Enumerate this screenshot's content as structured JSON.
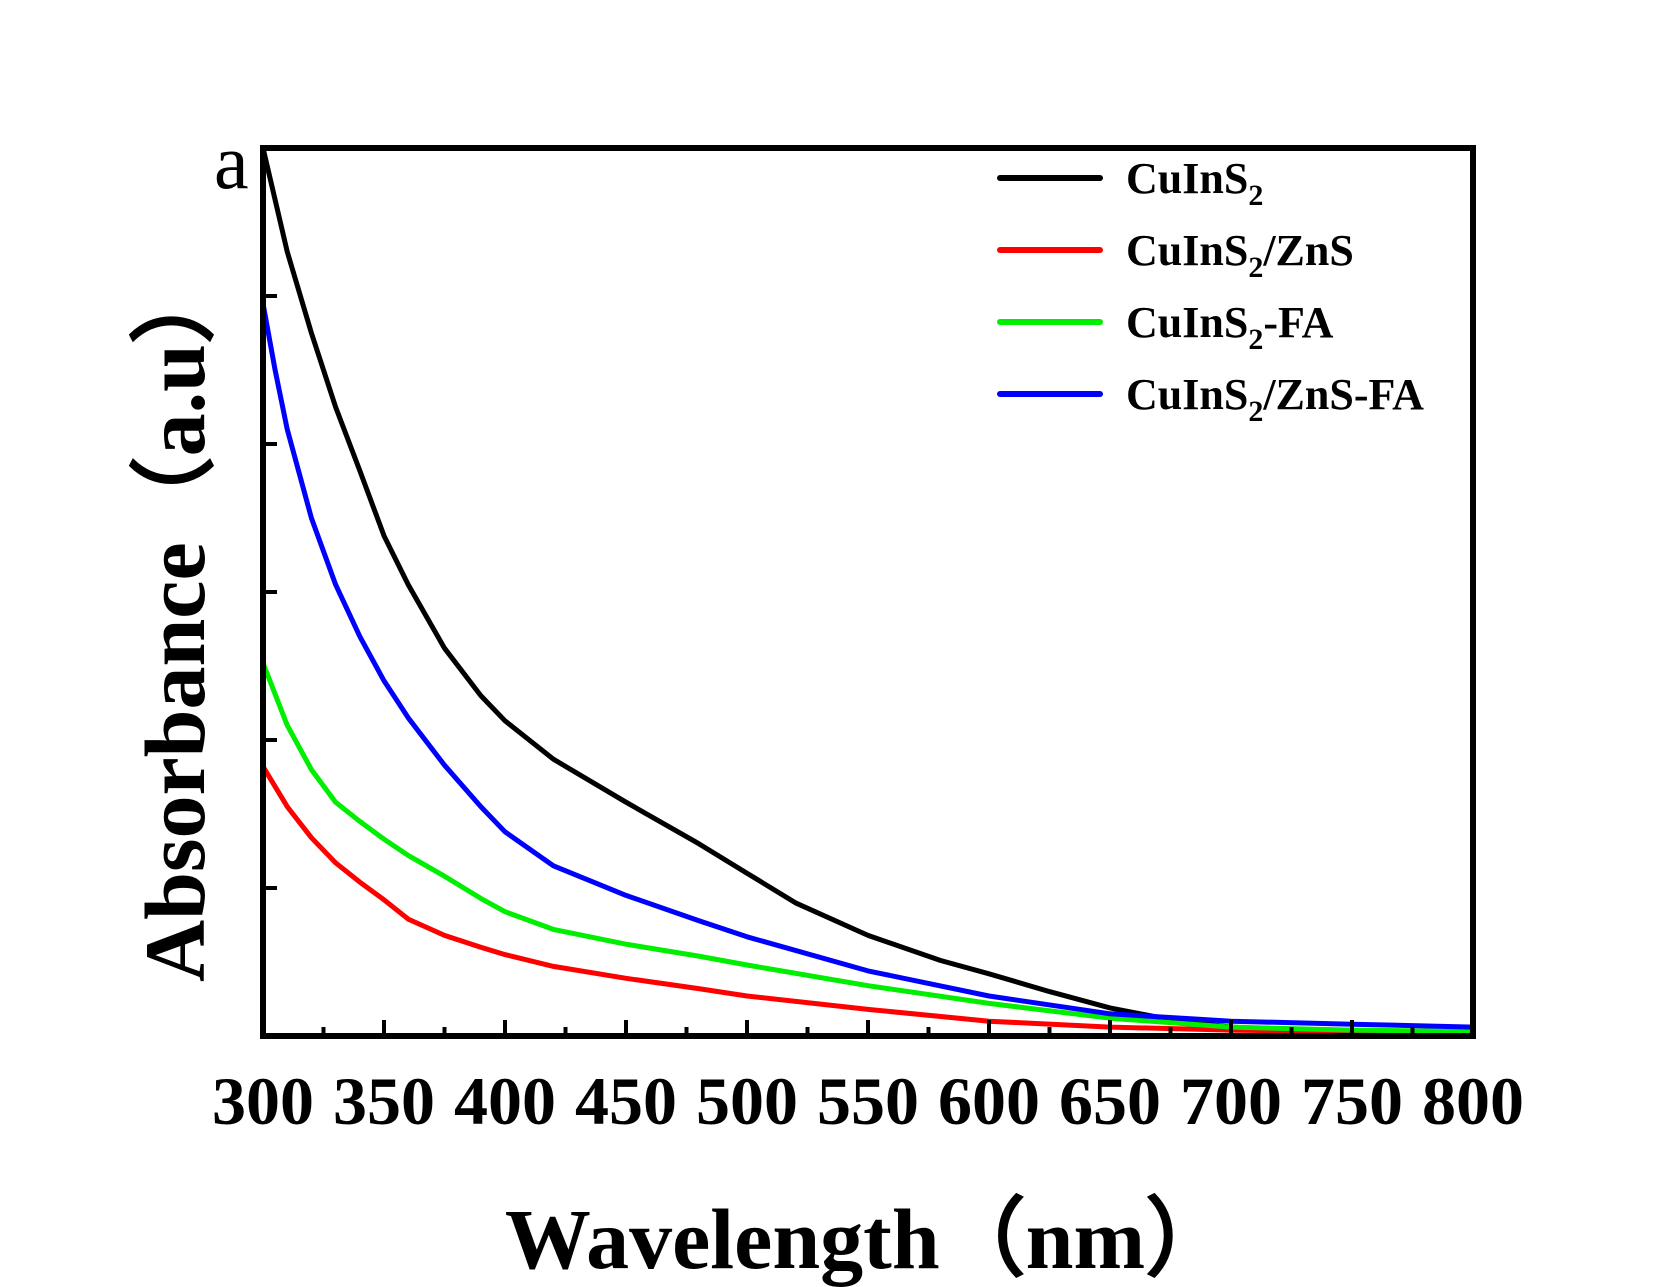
{
  "chart_data": {
    "type": "line",
    "panel_label": "a",
    "xlabel": "Wavelength（nm）",
    "ylabel": "Absorbance（a.u）",
    "xlim": [
      300,
      800
    ],
    "ylim": [
      0,
      6
    ],
    "x_ticks": [
      300,
      350,
      400,
      450,
      500,
      550,
      600,
      650,
      700,
      750,
      800
    ],
    "x_tick_labels": [
      "300",
      "350",
      "400",
      "450",
      "500",
      "550",
      "600",
      "650",
      "700",
      "750",
      "800"
    ],
    "y_ticks": [
      1,
      2,
      3,
      4,
      5
    ],
    "legend_position": "top-right",
    "series": [
      {
        "name": "CuInS2",
        "label_main": "CuInS",
        "label_sub": "2",
        "label_suffix": "",
        "color": "#000000",
        "x": [
          300,
          310,
          320,
          330,
          340,
          350,
          360,
          375,
          390,
          400,
          420,
          450,
          480,
          500,
          520,
          550,
          580,
          600,
          625,
          650,
          675,
          700,
          725,
          750,
          800
        ],
        "y": [
          6.0,
          5.3,
          4.75,
          4.25,
          3.82,
          3.38,
          3.05,
          2.62,
          2.3,
          2.13,
          1.87,
          1.58,
          1.3,
          1.1,
          0.9,
          0.68,
          0.51,
          0.42,
          0.3,
          0.19,
          0.11,
          0.06,
          0.04,
          0.03,
          0.02
        ]
      },
      {
        "name": "CuInS2/ZnS",
        "label_main": "CuInS",
        "label_sub": "2",
        "label_suffix": "/ZnS",
        "color": "#ff0000",
        "x": [
          300,
          310,
          320,
          330,
          340,
          350,
          360,
          375,
          390,
          400,
          420,
          450,
          480,
          500,
          550,
          600,
          650,
          700,
          750,
          800
        ],
        "y": [
          1.82,
          1.55,
          1.34,
          1.17,
          1.04,
          0.92,
          0.79,
          0.68,
          0.6,
          0.55,
          0.47,
          0.39,
          0.32,
          0.27,
          0.18,
          0.1,
          0.06,
          0.04,
          0.03,
          0.02
        ]
      },
      {
        "name": "CuInS2-FA",
        "label_main": "CuInS",
        "label_sub": "2",
        "label_suffix": "-FA",
        "color": "#00ee00",
        "x": [
          300,
          310,
          320,
          330,
          340,
          350,
          360,
          375,
          390,
          400,
          420,
          450,
          480,
          500,
          550,
          600,
          650,
          700,
          750,
          800
        ],
        "y": [
          2.52,
          2.1,
          1.8,
          1.58,
          1.45,
          1.33,
          1.22,
          1.08,
          0.93,
          0.84,
          0.72,
          0.62,
          0.54,
          0.48,
          0.34,
          0.22,
          0.12,
          0.06,
          0.04,
          0.03
        ]
      },
      {
        "name": "CuInS2/ZnS-FA",
        "label_main": "CuInS",
        "label_sub": "2",
        "label_suffix": "/ZnS-FA",
        "color": "#0000ff",
        "x": [
          300,
          305,
          310,
          320,
          330,
          340,
          350,
          360,
          375,
          390,
          400,
          420,
          450,
          480,
          500,
          550,
          600,
          650,
          700,
          750,
          800
        ],
        "y": [
          4.95,
          4.5,
          4.1,
          3.5,
          3.05,
          2.7,
          2.4,
          2.15,
          1.83,
          1.55,
          1.38,
          1.15,
          0.95,
          0.78,
          0.67,
          0.44,
          0.27,
          0.15,
          0.1,
          0.08,
          0.06
        ]
      }
    ]
  }
}
